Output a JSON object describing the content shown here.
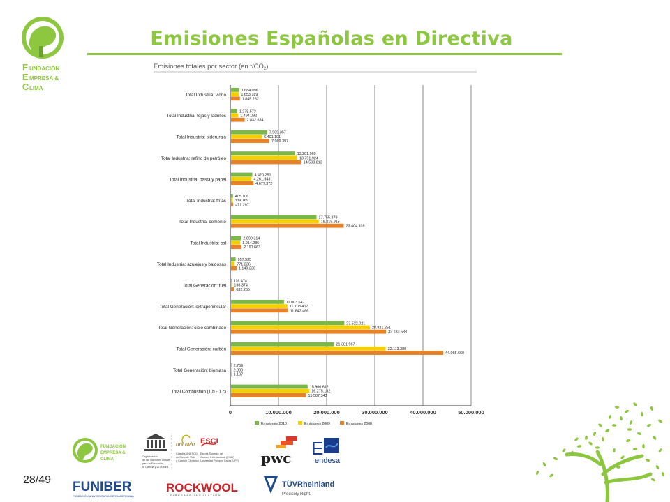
{
  "slide": {
    "title": "Emisiones Españolas en Directiva",
    "page": "28/49",
    "logo_name": [
      "F",
      "UNDACIÓN",
      "E",
      "MPRESA &",
      "C",
      "LIMA"
    ]
  },
  "logos": {
    "unesco_text": [
      "Organización",
      "de las Naciones Unidas",
      "para la Educación,",
      "la Ciencia y la Cultura"
    ],
    "unitwin_name": "uni twin",
    "unitwin_text": [
      "Cátedra UNESCO",
      "de Ciclo de Vida",
      "y Cambio Climático"
    ],
    "esci_name": "ESCI",
    "esci_text": [
      "Escola Superior de",
      "Comerç Internacional (ESCI)",
      "Universitat Pompeu Fabra (UPF)"
    ],
    "pwc": "pwc",
    "endesa": "endesa",
    "funiber": "FUNIBER",
    "funiber_sub": "FUNDACIÓN UNIVERSITARIA IBEROAMERICANA",
    "rockwool": "ROCKWOOL",
    "rockwool_sub": "FIRESAFE INSULATION",
    "tuv": "TÜVRheinland",
    "tuv_sub": "Precisely Right."
  },
  "colors": {
    "green": "#8dc63f",
    "s2010": "#7ab648",
    "s2009": "#f5d000",
    "s2008": "#e6822a"
  },
  "chart_data": {
    "type": "bar",
    "orientation": "horizontal",
    "title": "Emisiones totales por sector (en t/CO2)",
    "categories": [
      "Total Industria: vidrio",
      "Total Industria: tejas y ladrillos",
      "Total Industria: siderurgia",
      "Total Industria: refino de petróleo",
      "Total Industria: pasta y papel",
      "Total Industria: fritas",
      "Total Industria: cemento",
      "Total Industria: cal",
      "Total Industria: azulejos y baldosas",
      "Total Generación: fuel",
      "Total Generación: extrapeninsular",
      "Total Generación: ciclo combinado",
      "Total Generación: carbón",
      "Total Generación: biomasa",
      "Total Combustión (1.b - 1.c)"
    ],
    "series": [
      {
        "name": "Emisiones 2010",
        "color": "#7ab648",
        "values": [
          1684096,
          1278573,
          7505357,
          13281969,
          4420251,
          405106,
          17755879,
          2090314,
          957535,
          116474,
          11003647,
          23522021,
          21381967,
          2769,
          15906612
        ],
        "labels": [
          "1.684.096",
          "1.278.573",
          "7.505.357",
          "13.281.969",
          "4.420.251",
          "405.106",
          "17.755.879",
          "2.090.314",
          "957.535",
          "116.474",
          "11.003.647",
          "23.522.021",
          "21.381.967",
          "2.769",
          "15.906.612"
        ]
      },
      {
        "name": "Emisiones 2009",
        "color": "#f5d000",
        "values": [
          1653189,
          1494092,
          6401101,
          13751924,
          4261543,
          339169,
          18219915,
          1914286,
          771236,
          198374,
          11708407,
          28821251,
          32113389,
          2830,
          16275182
        ],
        "labels": [
          "1.653.189",
          "1.494.092",
          "6.401.101",
          "13.751.924",
          "4.261.543",
          "339.169",
          "18.219.915",
          "1.914.286",
          "771.236",
          "198.374",
          "11.708.407",
          "28.821.251",
          "32.113.389",
          "2.830",
          "16.275.182"
        ]
      },
      {
        "name": "Emisiones 2008",
        "color": "#e6822a",
        "values": [
          1845252,
          2832634,
          7969397,
          14598813,
          4677372,
          471297,
          23404939,
          2191663,
          1149236,
          632265,
          11842466,
          32183583,
          44065660,
          1197,
          15587343
        ],
        "labels": [
          "1.845.252",
          "2.832.634",
          "7.969.397",
          "14.598.813",
          "4.677.372",
          "471.297",
          "23.404.939",
          "2.191.663",
          "1.149.236",
          "632.265",
          "11.842.466",
          "32.183.583",
          "44.065.660",
          "1.197",
          "15.587.343"
        ]
      }
    ],
    "xlim": [
      0,
      50000000
    ],
    "xticks": [
      "0",
      "10.000.000",
      "20.000.000",
      "30.000.000",
      "40.000.000",
      "50.000.000"
    ],
    "grid": true,
    "legend": "bottom"
  }
}
